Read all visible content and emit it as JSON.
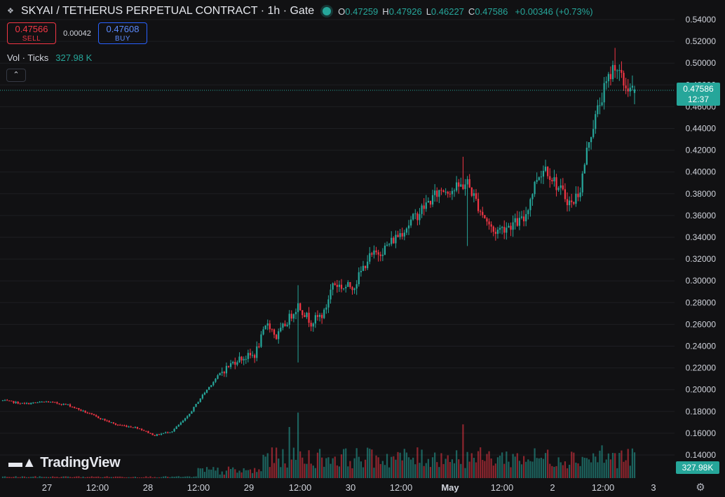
{
  "header": {
    "symbol_icon": "exchange-icon",
    "title": "SKYAI / TETHERUS PERPETUAL CONTRACT · 1h · Gate",
    "o_label": "O",
    "o_value": "0.47259",
    "h_label": "H",
    "h_value": "0.47926",
    "l_label": "L",
    "l_value": "0.46227",
    "c_label": "C",
    "c_value": "0.47586",
    "change": "+0.00346 (+0.73%)"
  },
  "trade": {
    "sell_price": "0.47566",
    "sell_label": "SELL",
    "spread": "0.00042",
    "buy_price": "0.47608",
    "buy_label": "BUY"
  },
  "volume_legend": {
    "label": "Vol · Ticks",
    "value": "327.98 K"
  },
  "last_price": {
    "price": "0.47586",
    "countdown": "12:37"
  },
  "last_volume": "327.98K",
  "logo_text": "TradingView",
  "colors": {
    "up": "#26a69a",
    "down": "#f23645",
    "background": "#111113",
    "grid": "#1e1f23",
    "text": "#d1d4dc"
  },
  "chart_data": {
    "type": "candlestick",
    "interval": "1h",
    "y_axis_ticks": [
      "0.54000",
      "0.52000",
      "0.50000",
      "0.48000",
      "0.46000",
      "0.44000",
      "0.42000",
      "0.40000",
      "0.38000",
      "0.36000",
      "0.34000",
      "0.32000",
      "0.30000",
      "0.28000",
      "0.26000",
      "0.24000",
      "0.22000",
      "0.20000",
      "0.18000",
      "0.16000",
      "0.14000"
    ],
    "ylim": [
      0.13,
      0.55
    ],
    "x_axis_labels": [
      "27",
      "12:00",
      "28",
      "12:00",
      "29",
      "12:00",
      "30",
      "12:00",
      "May",
      "12:00",
      "2",
      "12:00",
      "3"
    ],
    "x_axis_bold": [
      "May"
    ],
    "volume_max_k": 1400,
    "series": [
      {
        "name": "price",
        "trend_points": [
          [
            0,
            0.19
          ],
          [
            10,
            0.187
          ],
          [
            20,
            0.189
          ],
          [
            30,
            0.186
          ],
          [
            42,
            0.176
          ],
          [
            52,
            0.168
          ],
          [
            62,
            0.165
          ],
          [
            70,
            0.158
          ],
          [
            78,
            0.162
          ],
          [
            85,
            0.175
          ],
          [
            92,
            0.195
          ],
          [
            100,
            0.215
          ],
          [
            108,
            0.228
          ],
          [
            116,
            0.232
          ],
          [
            122,
            0.262
          ],
          [
            126,
            0.248
          ],
          [
            132,
            0.266
          ],
          [
            136,
            0.278
          ],
          [
            142,
            0.262
          ],
          [
            148,
            0.27
          ],
          [
            152,
            0.298
          ],
          [
            157,
            0.294
          ],
          [
            162,
            0.296
          ],
          [
            168,
            0.32
          ],
          [
            176,
            0.33
          ],
          [
            186,
            0.35
          ],
          [
            194,
            0.368
          ],
          [
            202,
            0.384
          ],
          [
            208,
            0.384
          ],
          [
            214,
            0.39
          ],
          [
            220,
            0.365
          ],
          [
            226,
            0.345
          ],
          [
            232,
            0.35
          ],
          [
            240,
            0.356
          ],
          [
            246,
            0.395
          ],
          [
            250,
            0.405
          ],
          [
            256,
            0.385
          ],
          [
            262,
            0.37
          ],
          [
            266,
            0.385
          ],
          [
            270,
            0.43
          ],
          [
            276,
            0.47
          ],
          [
            282,
            0.5
          ],
          [
            286,
            0.48
          ],
          [
            290,
            0.476
          ]
        ]
      },
      {
        "name": "volume",
        "spikes": [
          [
            122,
            380
          ],
          [
            132,
            780
          ],
          [
            136,
            1000
          ],
          [
            202,
            380
          ],
          [
            212,
            820
          ],
          [
            216,
            380
          ],
          [
            276,
            500
          ]
        ]
      }
    ]
  }
}
